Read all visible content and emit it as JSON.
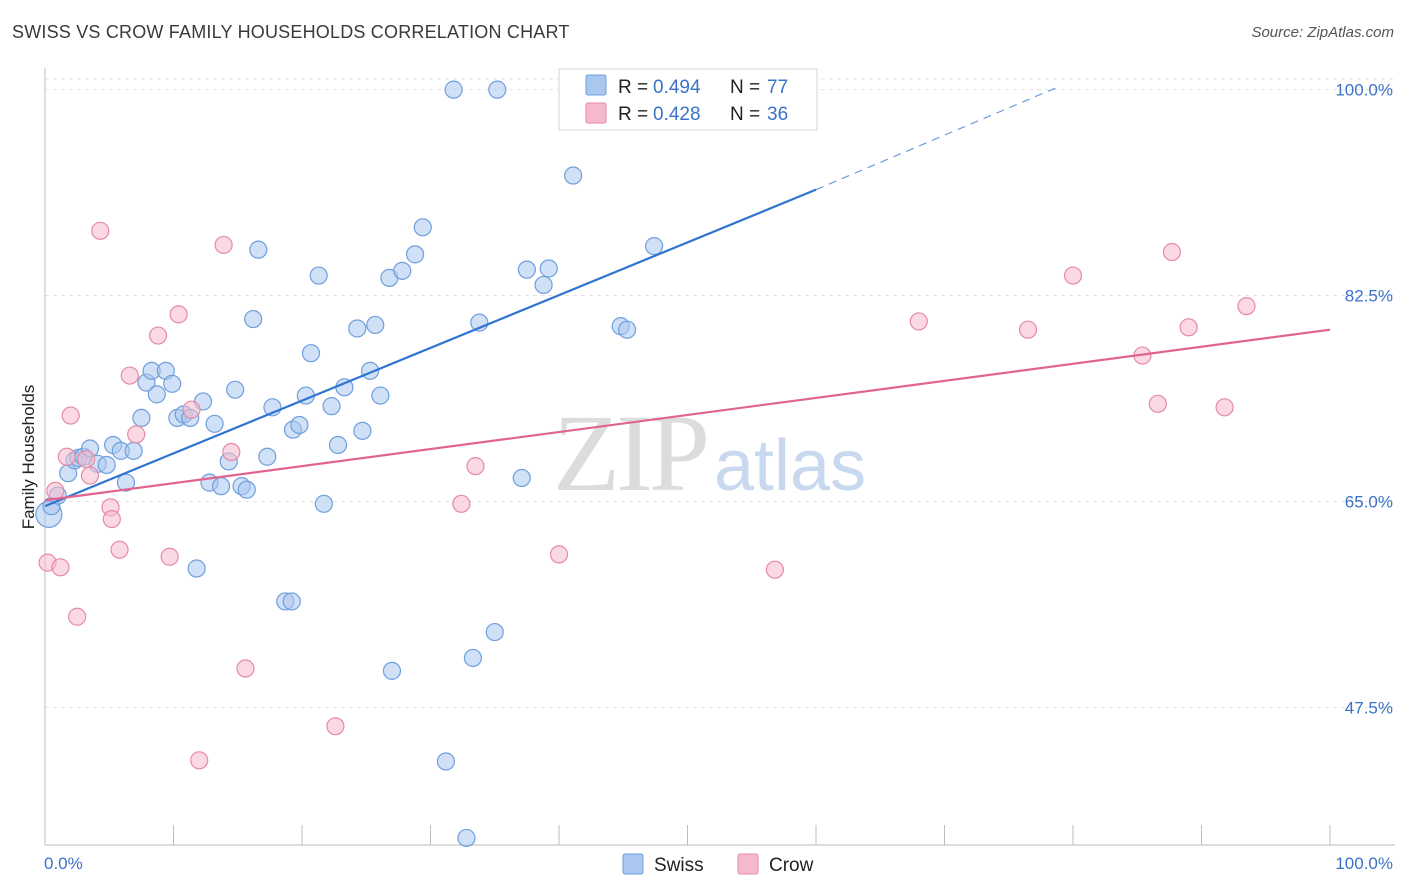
{
  "header": {
    "title": "SWISS VS CROW FAMILY HOUSEHOLDS CORRELATION CHART",
    "source": "Source: ZipAtlas.com"
  },
  "watermark": {
    "zip": "ZIP",
    "atlas": "atlas"
  },
  "legend_box": {
    "rows": [
      {
        "r_label": "R = ",
        "r_value": "0.494",
        "n_label": "N = ",
        "n_value": "77",
        "color": "#a9c7ef"
      },
      {
        "r_label": "R = ",
        "r_value": "0.428",
        "n_label": "N = ",
        "n_value": "36",
        "color": "#f6b9cc"
      }
    ]
  },
  "bottom_legend": [
    {
      "label": "Swiss",
      "color": "#a9c7ef"
    },
    {
      "label": "Crow",
      "color": "#f6b9cc"
    }
  ],
  "colors": {
    "swiss_fill": "#a9c7ef",
    "swiss_stroke": "#6f9fdc",
    "swiss_line": "#2f74d0",
    "crow_fill": "#f6b9cc",
    "crow_stroke": "#e58aa7",
    "crow_line": "#e0648d",
    "tick_text": "#3a72c8",
    "grid": "#e2e2e2"
  },
  "chart_data": {
    "type": "scatter",
    "title": "SWISS VS CROW FAMILY HOUSEHOLDS CORRELATION CHART",
    "xlabel": "",
    "ylabel": "Family Households",
    "x_tick_labels": [
      "0.0%",
      "100.0%"
    ],
    "y_tick_labels": [
      "100.0%",
      "82.5%",
      "65.0%",
      "47.5%"
    ],
    "y_ticks": [
      100.0,
      82.5,
      65.0,
      47.5
    ],
    "xlim": [
      0,
      100
    ],
    "ylim": [
      35.8,
      101.5
    ],
    "grid": true,
    "legend_position": "top-center",
    "series": [
      {
        "name": "Swiss",
        "r": 0.494,
        "n": 77,
        "trend": {
          "x0": 0,
          "y0": 64.6,
          "x1": 60,
          "y1": 91.5,
          "dashed_to_x": 79,
          "dashed_to_y": 100.3
        },
        "points": [
          [
            0.3,
            63.9
          ],
          [
            0.5,
            64.6
          ],
          [
            1.0,
            65.5
          ],
          [
            1.8,
            67.4
          ],
          [
            2.3,
            68.5
          ],
          [
            2.6,
            68.7
          ],
          [
            3.0,
            68.8
          ],
          [
            3.5,
            69.5
          ],
          [
            4.1,
            68.2
          ],
          [
            4.8,
            68.1
          ],
          [
            5.3,
            69.8
          ],
          [
            5.9,
            69.3
          ],
          [
            6.3,
            66.6
          ],
          [
            6.9,
            69.3
          ],
          [
            7.5,
            72.1
          ],
          [
            7.9,
            75.1
          ],
          [
            8.3,
            76.1
          ],
          [
            8.7,
            74.1
          ],
          [
            9.4,
            76.1
          ],
          [
            9.9,
            75.0
          ],
          [
            10.3,
            72.1
          ],
          [
            10.8,
            72.4
          ],
          [
            11.3,
            72.1
          ],
          [
            11.8,
            59.3
          ],
          [
            12.3,
            73.5
          ],
          [
            12.8,
            66.6
          ],
          [
            13.2,
            71.6
          ],
          [
            13.7,
            66.3
          ],
          [
            14.3,
            68.4
          ],
          [
            14.8,
            74.5
          ],
          [
            15.3,
            66.3
          ],
          [
            15.7,
            66.0
          ],
          [
            16.2,
            80.5
          ],
          [
            16.6,
            86.4
          ],
          [
            17.3,
            68.8
          ],
          [
            17.7,
            73.0
          ],
          [
            18.7,
            56.5
          ],
          [
            19.2,
            56.5
          ],
          [
            19.3,
            71.1
          ],
          [
            19.8,
            71.5
          ],
          [
            20.3,
            74.0
          ],
          [
            20.7,
            77.6
          ],
          [
            21.3,
            84.2
          ],
          [
            21.7,
            64.8
          ],
          [
            22.3,
            73.1
          ],
          [
            22.8,
            69.8
          ],
          [
            23.3,
            74.7
          ],
          [
            24.3,
            79.7
          ],
          [
            24.7,
            71.0
          ],
          [
            25.3,
            76.1
          ],
          [
            25.7,
            80.0
          ],
          [
            26.1,
            74.0
          ],
          [
            26.8,
            84.0
          ],
          [
            27.0,
            50.6
          ],
          [
            27.8,
            84.6
          ],
          [
            28.8,
            86.0
          ],
          [
            29.4,
            88.3
          ],
          [
            31.2,
            42.9
          ],
          [
            31.8,
            100.0
          ],
          [
            32.8,
            36.4
          ],
          [
            33.3,
            51.7
          ],
          [
            33.8,
            80.2
          ],
          [
            35.0,
            53.9
          ],
          [
            35.2,
            100.0
          ],
          [
            37.1,
            67.0
          ],
          [
            37.5,
            84.7
          ],
          [
            38.8,
            83.4
          ],
          [
            39.2,
            84.8
          ],
          [
            41.1,
            92.7
          ],
          [
            44.8,
            79.9
          ],
          [
            45.3,
            79.6
          ],
          [
            46.1,
            101.0
          ],
          [
            47.0,
            101.0
          ],
          [
            47.4,
            86.7
          ],
          [
            48.0,
            100.3
          ],
          [
            49.0,
            100.6
          ],
          [
            48.5,
            99.9
          ]
        ]
      },
      {
        "name": "Crow",
        "r": 0.428,
        "n": 36,
        "trend": {
          "x0": 0,
          "y0": 65.1,
          "x1": 100,
          "y1": 79.6
        },
        "points": [
          [
            0.2,
            59.8
          ],
          [
            0.8,
            65.9
          ],
          [
            1.2,
            59.4
          ],
          [
            1.7,
            68.8
          ],
          [
            2.0,
            72.3
          ],
          [
            2.5,
            55.2
          ],
          [
            3.2,
            68.6
          ],
          [
            3.5,
            67.2
          ],
          [
            4.3,
            88.0
          ],
          [
            5.1,
            64.5
          ],
          [
            5.2,
            63.5
          ],
          [
            5.8,
            60.9
          ],
          [
            6.6,
            75.7
          ],
          [
            7.1,
            70.7
          ],
          [
            8.8,
            79.1
          ],
          [
            9.7,
            60.3
          ],
          [
            10.4,
            80.9
          ],
          [
            11.4,
            72.8
          ],
          [
            12.0,
            43.0
          ],
          [
            13.9,
            86.8
          ],
          [
            14.5,
            69.2
          ],
          [
            15.6,
            50.8
          ],
          [
            22.6,
            45.9
          ],
          [
            32.4,
            64.8
          ],
          [
            33.5,
            68.0
          ],
          [
            40.0,
            60.5
          ],
          [
            56.8,
            59.2
          ],
          [
            68.0,
            80.3
          ],
          [
            76.5,
            79.6
          ],
          [
            80.0,
            84.2
          ],
          [
            85.4,
            77.4
          ],
          [
            86.6,
            73.3
          ],
          [
            87.7,
            86.2
          ],
          [
            89.0,
            79.8
          ],
          [
            91.8,
            73.0
          ],
          [
            93.5,
            81.6
          ]
        ]
      }
    ]
  }
}
